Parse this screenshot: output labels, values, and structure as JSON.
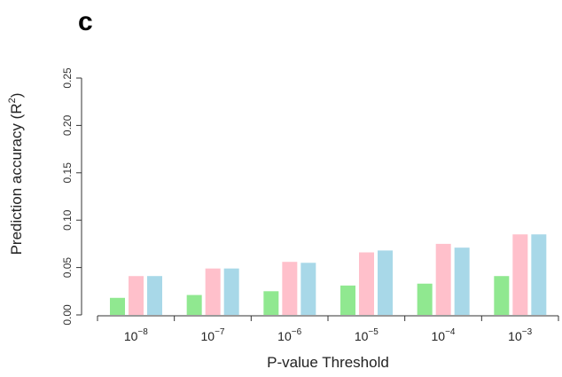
{
  "panel_label": "c",
  "chart_data": {
    "type": "bar",
    "categories": [
      "10^-8",
      "10^-7",
      "10^-6",
      "10^-5",
      "10^-4",
      "10^-3"
    ],
    "category_labels": [
      {
        "base": "10",
        "exp": "−8"
      },
      {
        "base": "10",
        "exp": "−7"
      },
      {
        "base": "10",
        "exp": "−6"
      },
      {
        "base": "10",
        "exp": "−5"
      },
      {
        "base": "10",
        "exp": "−4"
      },
      {
        "base": "10",
        "exp": "−3"
      }
    ],
    "series": [
      {
        "color": "#90e890",
        "values": [
          0.018,
          0.021,
          0.025,
          0.031,
          0.033,
          0.041
        ]
      },
      {
        "color": "#ffc0cb",
        "values": [
          0.041,
          0.049,
          0.056,
          0.066,
          0.075,
          0.085
        ]
      },
      {
        "color": "#a8d8e8",
        "values": [
          0.041,
          0.049,
          0.055,
          0.068,
          0.071,
          0.085
        ]
      }
    ],
    "xlabel": "P-value Threshold",
    "ylabel": {
      "main": "Prediction accuracy (R",
      "sup": "2",
      "tail": ")"
    },
    "ylim": [
      0,
      0.25
    ],
    "yticks": [
      "0.00",
      "0.05",
      "0.10",
      "0.15",
      "0.20",
      "0.25"
    ],
    "grid": false,
    "legend": "none"
  }
}
